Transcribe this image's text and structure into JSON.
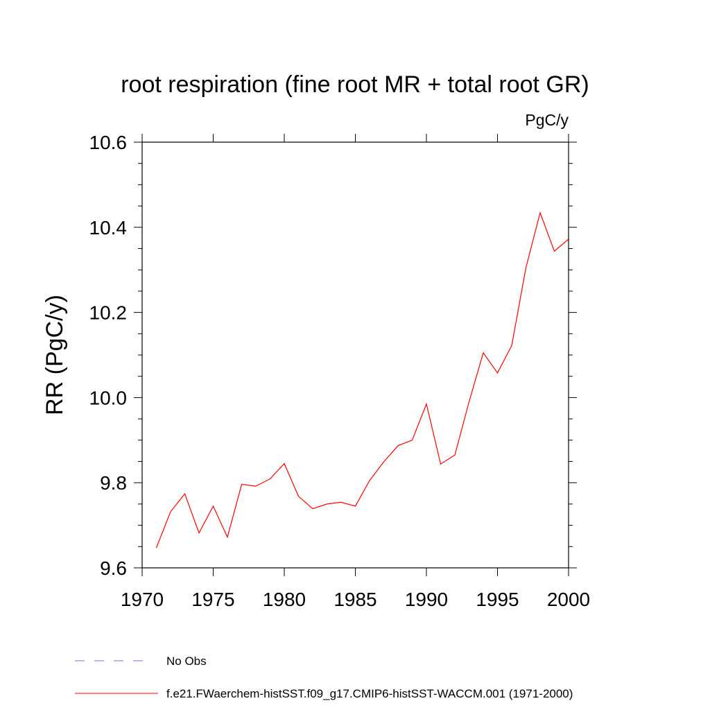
{
  "chart_data": {
    "type": "line",
    "title": "root respiration (fine root MR + total root GR)",
    "units": "PgC/y",
    "ylabel": "RR  (PgC/y)",
    "xlabel": "",
    "xlim": [
      1970,
      2000
    ],
    "ylim": [
      9.6,
      10.6
    ],
    "x_ticks": [
      1970,
      1975,
      1980,
      1985,
      1990,
      1995,
      2000
    ],
    "y_ticks": [
      9.6,
      9.8,
      10.0,
      10.2,
      10.4,
      10.6
    ],
    "x_tick_labels": [
      "1970",
      "1975",
      "1980",
      "1985",
      "1990",
      "1995",
      "2000"
    ],
    "y_tick_labels": [
      "9.6",
      "9.8",
      "10.0",
      "10.2",
      "10.4",
      "10.6"
    ],
    "grid": false,
    "series": [
      {
        "name": "f.e21.FWaerchem-histSST.f09_g17.CMIP6-histSST-WACCM.001 (1971-2000)",
        "color": "#ff0000",
        "x": [
          1971,
          1972,
          1973,
          1974,
          1975,
          1976,
          1977,
          1978,
          1979,
          1980,
          1981,
          1982,
          1983,
          1984,
          1985,
          1986,
          1987,
          1988,
          1989,
          1990,
          1991,
          1992,
          1993,
          1994,
          1995,
          1996,
          1997,
          1998,
          1999,
          2000
        ],
        "y": [
          9.647,
          9.732,
          9.774,
          9.682,
          9.745,
          9.672,
          9.796,
          9.792,
          9.809,
          9.845,
          9.768,
          9.739,
          9.75,
          9.754,
          9.745,
          9.805,
          9.849,
          9.887,
          9.9,
          9.985,
          9.844,
          9.865,
          9.99,
          10.105,
          10.058,
          10.122,
          10.305,
          10.434,
          10.344,
          10.372
        ]
      }
    ],
    "legend": [
      {
        "label": "No Obs",
        "color": "#7b68ee",
        "style": "dashed"
      },
      {
        "label": "f.e21.FWaerchem-histSST.f09_g17.CMIP6-histSST-WACCM.001 (1971-2000)",
        "color": "#ff0000",
        "style": "solid"
      }
    ],
    "legend_placement": "bottom-left"
  }
}
